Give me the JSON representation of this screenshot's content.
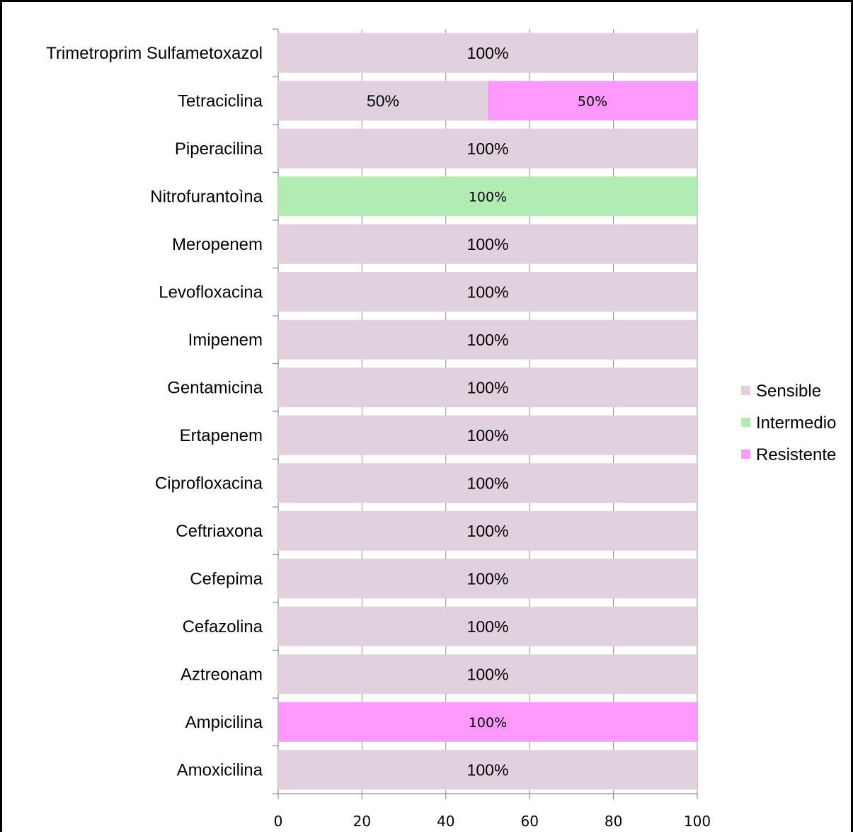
{
  "chart_data": {
    "type": "bar",
    "orientation": "horizontal",
    "stacked": true,
    "categories": [
      "Amoxicilina",
      "Ampicilina",
      "Aztreonam",
      "Cefazolina",
      "Cefepima",
      "Ceftriaxona",
      "Ciprofloxacina",
      "Ertapenem",
      "Gentamicina",
      "Imipenem",
      "Levofloxacina",
      "Meropenem",
      "Nitrofurantoìna",
      "Piperacilina",
      "Tetraciclina",
      "Trimetroprim Sulfametoxazol"
    ],
    "series": [
      {
        "name": "Sensible",
        "color": "#e1d0dd",
        "values": [
          100,
          0,
          100,
          100,
          100,
          100,
          100,
          100,
          100,
          100,
          100,
          100,
          0,
          100,
          50,
          100
        ],
        "labels": [
          "100%",
          "",
          "100%",
          "100%",
          "100%",
          "100%",
          "100%",
          "100%",
          "100%",
          "100%",
          "100%",
          "100%",
          "",
          "100%",
          "50%",
          "100%"
        ]
      },
      {
        "name": "Intermedio",
        "color": "#b2ecb2",
        "values": [
          0,
          0,
          0,
          0,
          0,
          0,
          0,
          0,
          0,
          0,
          0,
          0,
          100,
          0,
          0,
          0
        ],
        "labels": [
          "",
          "",
          "",
          "",
          "",
          "",
          "",
          "",
          "",
          "",
          "",
          "",
          "100%",
          "",
          "",
          ""
        ]
      },
      {
        "name": "Resistente",
        "color": "#ff99ff",
        "values": [
          0,
          100,
          0,
          0,
          0,
          0,
          0,
          0,
          0,
          0,
          0,
          0,
          0,
          0,
          50,
          0
        ],
        "labels": [
          "",
          "100%",
          "",
          "",
          "",
          "",
          "",
          "",
          "",
          "",
          "",
          "",
          "",
          "",
          "50%",
          ""
        ]
      }
    ],
    "xlim": [
      0,
      100
    ],
    "xticks": [
      "0",
      "20",
      "40",
      "60",
      "80",
      "100"
    ],
    "title": "",
    "xlabel": "",
    "ylabel": "",
    "grid": "vertical",
    "legend_position": "right"
  }
}
